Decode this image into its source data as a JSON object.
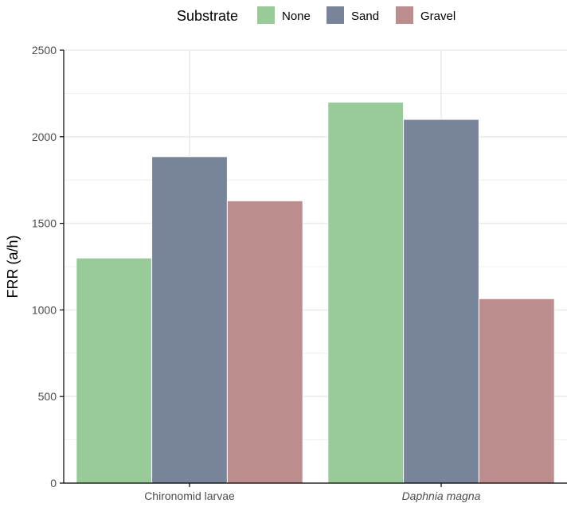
{
  "chart_data": {
    "type": "bar",
    "categories": [
      "Chironomid larvae",
      "Daphnia magna"
    ],
    "category_styles": [
      "normal",
      "italic"
    ],
    "series": [
      {
        "name": "None",
        "color": "#98cb98",
        "values": [
          1300,
          2200
        ]
      },
      {
        "name": "Sand",
        "color": "#77849a",
        "values": [
          1885,
          2100
        ]
      },
      {
        "name": "Gravel",
        "color": "#bd8c8c",
        "values": [
          1630,
          1065
        ]
      }
    ],
    "title": "",
    "xlabel": "",
    "ylabel": "FRR (a/h)",
    "ylim": [
      0,
      2500
    ],
    "yticks": [
      0,
      500,
      1000,
      1500,
      2000,
      2500
    ],
    "grid": true,
    "legend": {
      "title": "Substrate",
      "position": "top"
    }
  }
}
